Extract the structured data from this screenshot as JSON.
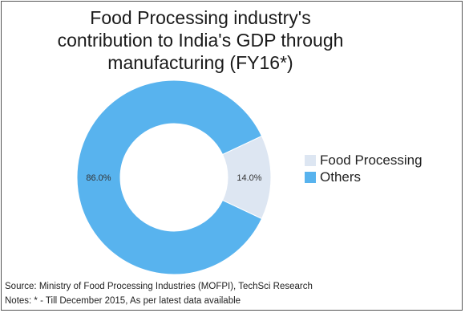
{
  "chart_data": {
    "type": "pie",
    "variant": "donut",
    "title_lines": [
      "Food Processing industry's",
      "contribution to India's GDP through",
      "manufacturing (FY16*)"
    ],
    "categories": [
      "Food Processing",
      "Others"
    ],
    "values": [
      14.0,
      86.0
    ],
    "data_labels": [
      "14.0%",
      "86.0%"
    ],
    "colors": [
      "#dde6f2",
      "#58b3ee"
    ],
    "legend_placement": "right",
    "grid": false
  },
  "notes": {
    "source": "Source: Ministry of Food Processing Industries (MOFPI), TechSci Research",
    "notes": "Notes: * - Till December 2015, As per latest data available"
  }
}
